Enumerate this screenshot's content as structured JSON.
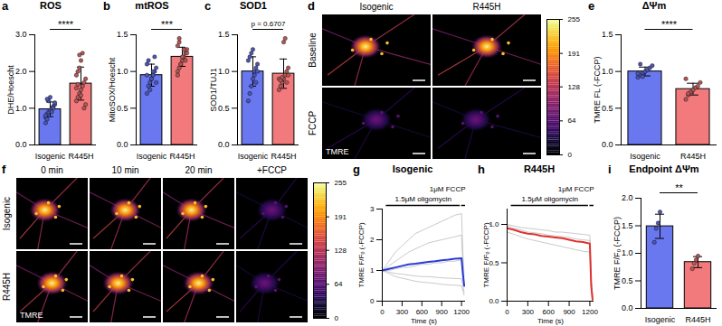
{
  "chart_data": [
    {
      "panel": "a",
      "type": "bar",
      "title": "ROS",
      "ylabel": "DHE/Hoescht",
      "categories": [
        "Isogenic",
        "R445H"
      ],
      "values": [
        0.97,
        1.67
      ],
      "errors": [
        0.2,
        0.45
      ],
      "points": [
        [
          0.75,
          0.85,
          0.9,
          0.95,
          1.0,
          1.05,
          1.1,
          0.8,
          0.7,
          1.2,
          1.3,
          0.9,
          1.0,
          1.15,
          0.6,
          1.25
        ],
        [
          1.2,
          1.3,
          1.4,
          1.5,
          1.6,
          1.7,
          1.8,
          1.9,
          2.0,
          2.1,
          2.3,
          2.5,
          1.0,
          1.1,
          1.55,
          1.65,
          2.45,
          1.35
        ]
      ],
      "colors": [
        "#6a78f0",
        "#f27a7c"
      ],
      "ylim": [
        0,
        3
      ],
      "yticks": [
        {
          "value": 0,
          "label": "0.0"
        },
        {
          "value": 1,
          "label": "1.0"
        },
        {
          "value": 2,
          "label": "2.0"
        },
        {
          "value": 3,
          "label": "3.0"
        }
      ],
      "annotation": "****"
    },
    {
      "panel": "b",
      "type": "bar",
      "title": "mtROS",
      "ylabel": "MitoSOX/Hoescht",
      "categories": [
        "Isogenic",
        "R445H"
      ],
      "values": [
        0.95,
        1.2
      ],
      "errors": [
        0.15,
        0.13
      ],
      "points": [
        [
          0.7,
          0.8,
          0.85,
          0.9,
          0.95,
          1.0,
          1.05,
          1.1,
          1.15,
          0.75,
          0.9,
          1.0,
          1.2,
          0.85,
          0.95
        ],
        [
          1.0,
          1.05,
          1.1,
          1.15,
          1.2,
          1.25,
          1.3,
          1.35,
          1.4,
          1.1,
          1.2,
          1.3,
          1.15,
          1.25,
          0.95,
          1.45
        ]
      ],
      "colors": [
        "#6a78f0",
        "#f27a7c"
      ],
      "ylim": [
        0,
        1.5
      ],
      "yticks": [
        {
          "value": 0,
          "label": "0.0"
        },
        0.5,
        {
          "value": 1,
          "label": "1.0"
        },
        1.5
      ],
      "annotation": "***"
    },
    {
      "panel": "c",
      "type": "bar",
      "title": "SOD1",
      "ylabel": "SOD1/TUJ1",
      "categories": [
        "Isogenic",
        "R445H"
      ],
      "values": [
        1.0,
        0.97
      ],
      "errors": [
        0.2,
        0.2
      ],
      "points": [
        [
          0.6,
          0.7,
          0.8,
          0.9,
          1.0,
          1.05,
          1.1,
          1.15,
          1.2,
          1.25,
          1.3,
          0.95,
          0.85,
          1.0
        ],
        [
          0.75,
          0.8,
          0.85,
          0.9,
          0.95,
          1.0,
          1.05,
          0.9,
          0.88,
          0.92,
          1.4,
          1.45,
          0.85,
          0.95
        ]
      ],
      "colors": [
        "#6a78f0",
        "#f27a7c"
      ],
      "ylim": [
        0,
        1.5
      ],
      "yticks": [
        {
          "value": 0,
          "label": "0.0"
        },
        0.5,
        {
          "value": 1,
          "label": "1.0"
        },
        1.5
      ],
      "annotation": "p = 0.6707"
    },
    {
      "panel": "d",
      "type": "image",
      "columns": [
        "Isogenic",
        "R445H"
      ],
      "rows": [
        "Baseline",
        "FCCP"
      ],
      "channel": "TMRE",
      "colorbar": {
        "range": [
          0,
          255
        ],
        "ticks": [
          0,
          64,
          128,
          191,
          255
        ]
      }
    },
    {
      "panel": "e",
      "type": "bar",
      "title": "ΔΨm",
      "ylabel": "TMRE FL (-FCCP)",
      "categories": [
        "Isogenic",
        "R445H"
      ],
      "values": [
        1.0,
        0.76
      ],
      "errors": [
        0.06,
        0.08
      ],
      "points": [
        [
          0.92,
          0.95,
          0.98,
          1.0,
          1.02,
          1.05,
          1.08,
          0.97,
          1.1,
          0.93
        ],
        [
          0.62,
          0.68,
          0.72,
          0.75,
          0.78,
          0.8,
          0.85,
          0.9,
          0.7
        ]
      ],
      "colors": [
        "#6a78f0",
        "#f27a7c"
      ],
      "ylim": [
        0,
        1.5
      ],
      "yticks": [
        {
          "value": 0,
          "label": "0.0"
        },
        0.5,
        {
          "value": 1,
          "label": "1.0"
        },
        1.5
      ],
      "annotation": "****"
    },
    {
      "panel": "f",
      "type": "image",
      "columns": [
        "0 min",
        "10 min",
        "20 min",
        "+FCCP"
      ],
      "rows": [
        "Isogenic",
        "R445H"
      ],
      "channel": "TMRE",
      "colorbar": {
        "range": [
          0,
          255
        ],
        "ticks": [
          0,
          64,
          128,
          191,
          255
        ]
      }
    },
    {
      "panel": "g",
      "type": "line",
      "title": "Isogenic",
      "xlabel": "Time (s)",
      "ylabel": "TMRE F/F₀ (-FCCP)",
      "x": [
        0,
        100,
        200,
        300,
        400,
        500,
        600,
        700,
        800,
        900,
        1000,
        1100,
        1200,
        1220,
        1240
      ],
      "series": [
        {
          "color": "#bbbbbb",
          "values": [
            1.0,
            1.3,
            1.6,
            1.8,
            2.0,
            2.2,
            2.3,
            2.4,
            2.5,
            2.6,
            2.7,
            2.8,
            2.85,
            1.6,
            0.8
          ]
        },
        {
          "color": "#bbbbbb",
          "values": [
            1.0,
            1.15,
            1.3,
            1.45,
            1.6,
            1.7,
            1.8,
            1.9,
            1.95,
            2.0,
            2.05,
            2.1,
            2.15,
            1.2,
            0.6
          ]
        },
        {
          "color": "#bbbbbb",
          "values": [
            1.0,
            1.0,
            1.05,
            1.1,
            1.1,
            1.15,
            1.2,
            1.2,
            1.25,
            1.25,
            1.3,
            1.3,
            1.35,
            0.9,
            0.5
          ]
        },
        {
          "color": "#bbbbbb",
          "values": [
            1.0,
            0.95,
            0.9,
            0.88,
            0.85,
            0.82,
            0.8,
            0.8,
            0.78,
            0.76,
            0.75,
            0.74,
            0.73,
            0.5,
            0.3
          ]
        },
        {
          "color": "#bbbbbb",
          "values": [
            1.0,
            0.9,
            0.8,
            0.75,
            0.7,
            0.65,
            0.62,
            0.6,
            0.58,
            0.55,
            0.53,
            0.52,
            0.5,
            0.35,
            0.2
          ]
        },
        {
          "color": "#2a3bd6",
          "values": [
            1.0,
            1.05,
            1.1,
            1.15,
            1.2,
            1.22,
            1.25,
            1.28,
            1.3,
            1.33,
            1.35,
            1.38,
            1.4,
            0.9,
            0.5
          ]
        }
      ],
      "xlim": [
        0,
        1260
      ],
      "xticks": [
        0,
        300,
        600,
        900,
        1200
      ],
      "ylim": [
        0,
        3
      ],
      "yticks": [
        0,
        1,
        2,
        3
      ],
      "annotations": [
        {
          "text": "1.5μM oligomycin",
          "x1": 60,
          "x2": 1180
        },
        {
          "text": "1μM FCCP",
          "x1": 1200,
          "x2": 1260
        }
      ]
    },
    {
      "panel": "h",
      "type": "line",
      "title": "R445H",
      "xlabel": "Time (s)",
      "ylabel": "TMRE F/F₀ (-FCCP)",
      "x": [
        0,
        100,
        200,
        300,
        400,
        500,
        600,
        700,
        800,
        900,
        1000,
        1100,
        1200,
        1220,
        1240
      ],
      "series": [
        {
          "color": "#bbbbbb",
          "values": [
            1.0,
            0.98,
            0.96,
            0.95,
            0.94,
            0.93,
            0.92,
            0.9,
            0.9,
            0.89,
            0.88,
            0.87,
            0.86,
            0.3,
            0.05
          ]
        },
        {
          "color": "#bbbbbb",
          "values": [
            0.9,
            0.87,
            0.84,
            0.81,
            0.79,
            0.77,
            0.75,
            0.73,
            0.71,
            0.69,
            0.67,
            0.65,
            0.64,
            0.15,
            0.0
          ]
        },
        {
          "color": "#bbbbbb",
          "values": [
            0.98,
            0.95,
            0.93,
            0.9,
            0.89,
            0.88,
            0.86,
            0.85,
            0.84,
            0.83,
            0.81,
            0.8,
            0.79,
            0.25,
            0.03
          ]
        },
        {
          "color": "#e03030",
          "values": [
            0.95,
            0.93,
            0.9,
            0.88,
            0.87,
            0.85,
            0.84,
            0.83,
            0.82,
            0.8,
            0.78,
            0.77,
            0.75,
            0.2,
            0.02
          ]
        }
      ],
      "xlim": [
        0,
        1260
      ],
      "xticks": [
        0,
        300,
        600,
        900,
        1200
      ],
      "ylim": [
        0,
        1.2
      ],
      "yticks": [
        {
          "value": 0,
          "label": "0.0"
        },
        0.5,
        {
          "value": 1,
          "label": "1.0"
        }
      ],
      "annotations": [
        {
          "text": "1.5μM oligomycin",
          "x1": 60,
          "x2": 1180
        },
        {
          "text": "1μM FCCP",
          "x1": 1200,
          "x2": 1260
        }
      ]
    },
    {
      "panel": "i",
      "type": "bar",
      "title": "Endpoint ΔΨm",
      "ylabel": "TMRE F/F₀ (-FCCP)",
      "categories": [
        "Isogenic",
        "R445H"
      ],
      "values": [
        1.49,
        0.84
      ],
      "errors": [
        0.22,
        0.1
      ],
      "points": [
        [
          1.2,
          1.45,
          1.55,
          1.75
        ],
        [
          0.72,
          0.82,
          0.88,
          0.95
        ]
      ],
      "colors": [
        "#6a78f0",
        "#f27a7c"
      ],
      "ylim": [
        0,
        2
      ],
      "yticks": [
        {
          "value": 0,
          "label": "0.0"
        },
        0.5,
        {
          "value": 1,
          "label": "1.0"
        },
        1.5,
        {
          "value": 2,
          "label": "2.0"
        }
      ],
      "annotation": "**"
    }
  ]
}
